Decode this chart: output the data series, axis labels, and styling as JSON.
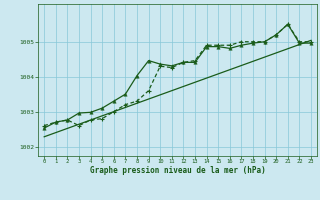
{
  "xlabel": "Graphe pression niveau de la mer (hPa)",
  "bg_color": "#cce8f0",
  "grid_color": "#88c8d8",
  "line_color": "#1a5c1a",
  "xlim": [
    -0.5,
    23.5
  ],
  "ylim": [
    1001.75,
    1006.1
  ],
  "yticks": [
    1002,
    1003,
    1004,
    1005
  ],
  "xticks": [
    0,
    1,
    2,
    3,
    4,
    5,
    6,
    7,
    8,
    9,
    10,
    11,
    12,
    13,
    14,
    15,
    16,
    17,
    18,
    19,
    20,
    21,
    22,
    23
  ],
  "line1_x": [
    0,
    1,
    2,
    3,
    4,
    5,
    6,
    7,
    8,
    9,
    10,
    11,
    12,
    13,
    14,
    15,
    16,
    17,
    18,
    19,
    20,
    21,
    22,
    23
  ],
  "line1_y": [
    1002.3,
    1002.42,
    1002.54,
    1002.66,
    1002.78,
    1002.9,
    1003.02,
    1003.14,
    1003.26,
    1003.38,
    1003.5,
    1003.62,
    1003.74,
    1003.86,
    1003.98,
    1004.1,
    1004.22,
    1004.34,
    1004.46,
    1004.58,
    1004.7,
    1004.82,
    1004.94,
    1005.06
  ],
  "line2_x": [
    0,
    1,
    2,
    3,
    4,
    5,
    6,
    7,
    8,
    9,
    10,
    11,
    12,
    13,
    14,
    15,
    16,
    17,
    18,
    19,
    20,
    21,
    22,
    23
  ],
  "line2_y": [
    1002.55,
    1002.72,
    1002.78,
    1002.98,
    1003.0,
    1003.12,
    1003.32,
    1003.52,
    1004.05,
    1004.48,
    1004.38,
    1004.33,
    1004.43,
    1004.43,
    1004.88,
    1004.88,
    1004.83,
    1004.92,
    1004.98,
    1005.02,
    1005.22,
    1005.52,
    1004.98,
    1004.98
  ],
  "line3_x": [
    0,
    1,
    2,
    3,
    4,
    5,
    6,
    7,
    8,
    9,
    10,
    11,
    12,
    13,
    14,
    15,
    16,
    17,
    18,
    19,
    20,
    21,
    22,
    23
  ],
  "line3_y": [
    1002.62,
    1002.72,
    1002.78,
    1002.62,
    1002.78,
    1002.82,
    1003.02,
    1003.22,
    1003.32,
    1003.62,
    1004.32,
    1004.28,
    1004.43,
    1004.48,
    1004.92,
    1004.92,
    1004.92,
    1005.02,
    1005.02,
    1005.02,
    1005.22,
    1005.52,
    1005.02,
    1005.02
  ]
}
